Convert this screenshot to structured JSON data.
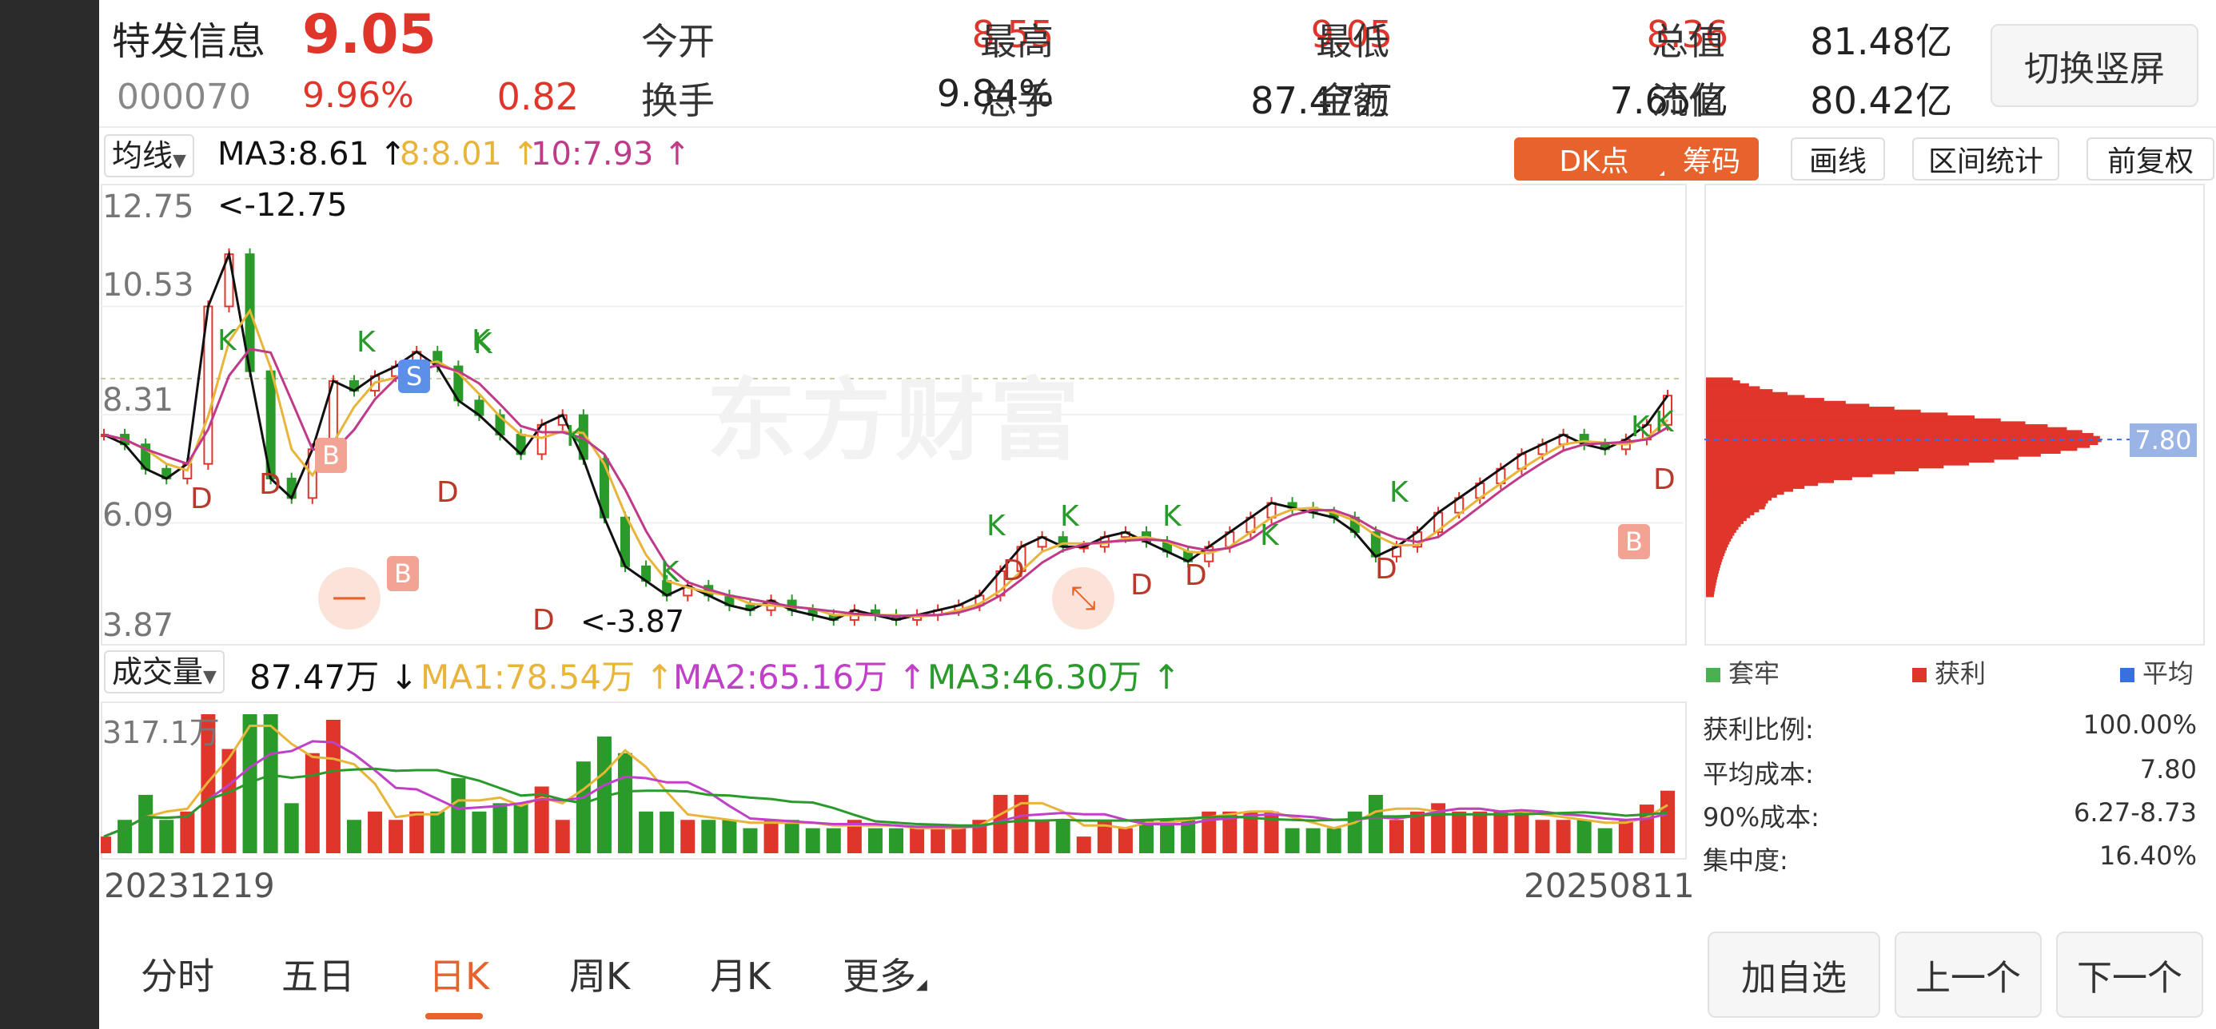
{
  "stock": {
    "name": "特发信息",
    "code": "000070",
    "price": "9.05",
    "change_pct": "9.96%",
    "change_amt": "0.82",
    "toggle_label": "切换竖屏"
  },
  "quote": {
    "open_label": "今开",
    "open": "8.55",
    "high_label": "最高",
    "high": "9.05",
    "low_label": "最低",
    "low": "8.36",
    "mktcap_label": "总值",
    "mktcap": "81.48亿",
    "turnover_label": "换手",
    "turnover": "9.84%",
    "volume_label": "总手",
    "volume": "87.47万",
    "amount_label": "金额",
    "amount": "7.65亿",
    "float_label": "流值",
    "float": "80.42亿"
  },
  "ma_bar": {
    "selector": "均线",
    "ma3": "MA3:8.61 ↑",
    "ma8": "8:8.01 ↑",
    "ma10": "10:7.93 ↑"
  },
  "toolbar": {
    "dk": "DK点",
    "chips": "筹码",
    "draw": "画线",
    "range": "区间统计",
    "adjust": "前复权"
  },
  "colors": {
    "up": "#e0352b",
    "down": "#2a9a2a",
    "accent": "#e8622b",
    "ma_black": "#111111",
    "ma_yellow": "#e8b53a",
    "ma_purple": "#c03a8a",
    "vol_ma2": "#c040c8"
  },
  "price_axis": [
    "12.75",
    "10.53",
    "8.31",
    "6.09",
    "3.87"
  ],
  "annotations": {
    "high_marker": "<-12.75",
    "low_marker": "<-3.87",
    "marker_k": "K",
    "marker_d": "D",
    "marker_b": "B",
    "marker_s": "S"
  },
  "watermark": "东方财富",
  "volume_bar": {
    "selector": "成交量",
    "value": "87.47万 ↓",
    "ma1": "MA1:78.54万 ↑",
    "ma2": "MA2:65.16万 ↑",
    "ma3": "MA3:46.30万 ↑",
    "axis_max": "317.1万"
  },
  "dates": {
    "start": "20231219",
    "end": "20250811"
  },
  "chip_panel": {
    "avg_price_tag": "7.80",
    "legend": [
      "套牢",
      "获利",
      "平均"
    ],
    "stats": [
      {
        "label": "获利比例:",
        "value": "100.00%"
      },
      {
        "label": "平均成本:",
        "value": "7.80"
      },
      {
        "label": "90%成本:",
        "value": "6.27-8.73"
      },
      {
        "label": "集中度:",
        "value": "16.40%"
      }
    ]
  },
  "nav_tabs": [
    "分时",
    "五日",
    "日K",
    "周K",
    "月K",
    "更多"
  ],
  "actions": {
    "add": "加自选",
    "prev": "上一个",
    "next": "下一个"
  },
  "chart_data": {
    "type": "candlestick",
    "period": "daily",
    "x_range": [
      "20231219",
      "20250811"
    ],
    "ylim": [
      3.87,
      12.75
    ],
    "close_series": [
      7.9,
      7.7,
      7.2,
      7.0,
      7.3,
      10.53,
      11.6,
      9.2,
      7.0,
      6.6,
      7.6,
      9.0,
      8.8,
      9.1,
      9.3,
      9.6,
      9.3,
      8.6,
      8.3,
      7.9,
      7.5,
      8.1,
      8.3,
      7.4,
      6.2,
      5.2,
      4.9,
      4.6,
      4.8,
      4.6,
      4.4,
      4.3,
      4.5,
      4.3,
      4.2,
      4.1,
      4.3,
      4.2,
      4.1,
      4.2,
      4.3,
      4.4,
      4.6,
      5.1,
      5.6,
      5.8,
      5.6,
      5.6,
      5.8,
      5.9,
      5.7,
      5.5,
      5.3,
      5.6,
      5.9,
      6.2,
      6.5,
      6.4,
      6.3,
      6.2,
      5.9,
      5.4,
      5.6,
      5.9,
      6.3,
      6.6,
      6.9,
      7.2,
      7.5,
      7.7,
      7.9,
      7.7,
      7.6,
      7.8,
      8.1,
      8.7
    ],
    "volume_max": "317.1万",
    "last": {
      "open": 8.55,
      "high": 9.05,
      "low": 8.36,
      "close": 9.05,
      "volume": "87.47万"
    }
  }
}
